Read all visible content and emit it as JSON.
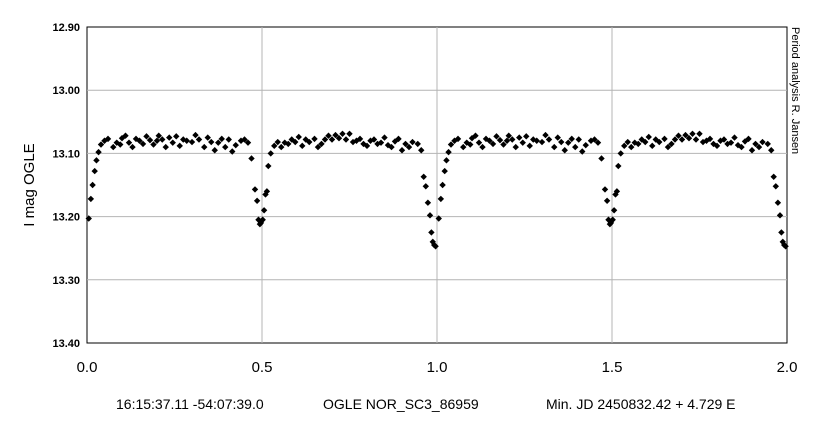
{
  "chart_data": {
    "type": "scatter",
    "title": "",
    "xlabel": "",
    "ylabel": "I mag OGLE",
    "xlim": [
      0.0,
      2.0
    ],
    "ylim": [
      12.9,
      13.4
    ],
    "y_inverted": true,
    "grid": true,
    "x_ticks": [
      "0.0",
      "0.5",
      "1.0",
      "1.5",
      "2.0"
    ],
    "y_ticks": [
      "12.90",
      "13.00",
      "13.10",
      "13.20",
      "13.30",
      "13.40"
    ],
    "marker": "diamond",
    "marker_color": "#000000",
    "credit": "Period analysis  R. Jansen",
    "points": [
      [
        0.005,
        13.203
      ],
      [
        0.011,
        13.172
      ],
      [
        0.016,
        13.15
      ],
      [
        0.022,
        13.128
      ],
      [
        0.027,
        13.111
      ],
      [
        0.033,
        13.098
      ],
      [
        0.04,
        13.086
      ],
      [
        0.05,
        13.08
      ],
      [
        0.06,
        13.077
      ],
      [
        0.075,
        13.09
      ],
      [
        0.085,
        13.083
      ],
      [
        0.095,
        13.086
      ],
      [
        0.1,
        13.076
      ],
      [
        0.11,
        13.072
      ],
      [
        0.12,
        13.083
      ],
      [
        0.13,
        13.09
      ],
      [
        0.14,
        13.077
      ],
      [
        0.15,
        13.08
      ],
      [
        0.16,
        13.085
      ],
      [
        0.17,
        13.073
      ],
      [
        0.18,
        13.079
      ],
      [
        0.19,
        13.086
      ],
      [
        0.2,
        13.08
      ],
      [
        0.205,
        13.072
      ],
      [
        0.215,
        13.078
      ],
      [
        0.225,
        13.09
      ],
      [
        0.235,
        13.075
      ],
      [
        0.245,
        13.083
      ],
      [
        0.255,
        13.073
      ],
      [
        0.265,
        13.088
      ],
      [
        0.275,
        13.078
      ],
      [
        0.285,
        13.08
      ],
      [
        0.3,
        13.082
      ],
      [
        0.31,
        13.071
      ],
      [
        0.32,
        13.078
      ],
      [
        0.335,
        13.09
      ],
      [
        0.345,
        13.075
      ],
      [
        0.355,
        13.082
      ],
      [
        0.365,
        13.095
      ],
      [
        0.375,
        13.083
      ],
      [
        0.385,
        13.077
      ],
      [
        0.395,
        13.09
      ],
      [
        0.405,
        13.078
      ],
      [
        0.415,
        13.097
      ],
      [
        0.425,
        13.087
      ],
      [
        0.44,
        13.08
      ],
      [
        0.45,
        13.078
      ],
      [
        0.46,
        13.083
      ],
      [
        0.47,
        13.108
      ],
      [
        0.48,
        13.157
      ],
      [
        0.486,
        13.175
      ],
      [
        0.49,
        13.205
      ],
      [
        0.494,
        13.212
      ],
      [
        0.497,
        13.21
      ],
      [
        0.502,
        13.205
      ],
      [
        0.506,
        13.19
      ],
      [
        0.51,
        13.165
      ],
      [
        0.514,
        13.16
      ],
      [
        0.518,
        13.12
      ],
      [
        0.525,
        13.1
      ],
      [
        0.535,
        13.088
      ],
      [
        0.545,
        13.082
      ],
      [
        0.555,
        13.09
      ],
      [
        0.565,
        13.083
      ],
      [
        0.575,
        13.085
      ],
      [
        0.585,
        13.078
      ],
      [
        0.595,
        13.082
      ],
      [
        0.605,
        13.074
      ],
      [
        0.615,
        13.088
      ],
      [
        0.625,
        13.078
      ],
      [
        0.635,
        13.082
      ],
      [
        0.65,
        13.077
      ],
      [
        0.66,
        13.09
      ],
      [
        0.67,
        13.085
      ],
      [
        0.68,
        13.078
      ],
      [
        0.69,
        13.072
      ],
      [
        0.7,
        13.078
      ],
      [
        0.71,
        13.071
      ],
      [
        0.72,
        13.076
      ],
      [
        0.73,
        13.069
      ],
      [
        0.74,
        13.078
      ],
      [
        0.75,
        13.069
      ],
      [
        0.76,
        13.082
      ],
      [
        0.77,
        13.08
      ],
      [
        0.78,
        13.077
      ],
      [
        0.79,
        13.085
      ],
      [
        0.8,
        13.088
      ],
      [
        0.81,
        13.08
      ],
      [
        0.82,
        13.078
      ],
      [
        0.83,
        13.085
      ],
      [
        0.84,
        13.083
      ],
      [
        0.85,
        13.075
      ],
      [
        0.86,
        13.087
      ],
      [
        0.87,
        13.09
      ],
      [
        0.88,
        13.081
      ],
      [
        0.89,
        13.077
      ],
      [
        0.9,
        13.095
      ],
      [
        0.91,
        13.085
      ],
      [
        0.92,
        13.09
      ],
      [
        0.93,
        13.082
      ],
      [
        0.945,
        13.085
      ],
      [
        0.955,
        13.095
      ],
      [
        0.962,
        13.137
      ],
      [
        0.968,
        13.152
      ],
      [
        0.974,
        13.178
      ],
      [
        0.98,
        13.198
      ],
      [
        0.984,
        13.225
      ],
      [
        0.988,
        13.24
      ],
      [
        0.992,
        13.245
      ],
      [
        0.996,
        13.247
      ],
      [
        1.005,
        13.203
      ],
      [
        1.011,
        13.172
      ],
      [
        1.016,
        13.15
      ],
      [
        1.022,
        13.128
      ],
      [
        1.027,
        13.111
      ],
      [
        1.033,
        13.098
      ],
      [
        1.04,
        13.086
      ],
      [
        1.05,
        13.08
      ],
      [
        1.06,
        13.077
      ],
      [
        1.075,
        13.09
      ],
      [
        1.085,
        13.083
      ],
      [
        1.095,
        13.086
      ],
      [
        1.1,
        13.076
      ],
      [
        1.11,
        13.072
      ],
      [
        1.12,
        13.083
      ],
      [
        1.13,
        13.09
      ],
      [
        1.14,
        13.077
      ],
      [
        1.15,
        13.08
      ],
      [
        1.16,
        13.085
      ],
      [
        1.17,
        13.073
      ],
      [
        1.18,
        13.079
      ],
      [
        1.19,
        13.086
      ],
      [
        1.2,
        13.08
      ],
      [
        1.205,
        13.072
      ],
      [
        1.215,
        13.078
      ],
      [
        1.225,
        13.09
      ],
      [
        1.235,
        13.075
      ],
      [
        1.245,
        13.083
      ],
      [
        1.255,
        13.073
      ],
      [
        1.265,
        13.088
      ],
      [
        1.275,
        13.078
      ],
      [
        1.285,
        13.08
      ],
      [
        1.3,
        13.082
      ],
      [
        1.31,
        13.071
      ],
      [
        1.32,
        13.078
      ],
      [
        1.335,
        13.09
      ],
      [
        1.345,
        13.075
      ],
      [
        1.355,
        13.082
      ],
      [
        1.365,
        13.095
      ],
      [
        1.375,
        13.083
      ],
      [
        1.385,
        13.077
      ],
      [
        1.395,
        13.09
      ],
      [
        1.405,
        13.078
      ],
      [
        1.415,
        13.097
      ],
      [
        1.425,
        13.087
      ],
      [
        1.44,
        13.08
      ],
      [
        1.45,
        13.078
      ],
      [
        1.46,
        13.083
      ],
      [
        1.47,
        13.108
      ],
      [
        1.48,
        13.157
      ],
      [
        1.486,
        13.175
      ],
      [
        1.49,
        13.205
      ],
      [
        1.494,
        13.212
      ],
      [
        1.497,
        13.21
      ],
      [
        1.502,
        13.205
      ],
      [
        1.506,
        13.19
      ],
      [
        1.51,
        13.165
      ],
      [
        1.514,
        13.16
      ],
      [
        1.518,
        13.12
      ],
      [
        1.525,
        13.1
      ],
      [
        1.535,
        13.088
      ],
      [
        1.545,
        13.082
      ],
      [
        1.555,
        13.09
      ],
      [
        1.565,
        13.083
      ],
      [
        1.575,
        13.085
      ],
      [
        1.585,
        13.078
      ],
      [
        1.595,
        13.082
      ],
      [
        1.605,
        13.074
      ],
      [
        1.615,
        13.088
      ],
      [
        1.625,
        13.078
      ],
      [
        1.635,
        13.082
      ],
      [
        1.65,
        13.077
      ],
      [
        1.66,
        13.09
      ],
      [
        1.67,
        13.085
      ],
      [
        1.68,
        13.078
      ],
      [
        1.69,
        13.072
      ],
      [
        1.7,
        13.078
      ],
      [
        1.71,
        13.071
      ],
      [
        1.72,
        13.076
      ],
      [
        1.73,
        13.069
      ],
      [
        1.74,
        13.078
      ],
      [
        1.75,
        13.069
      ],
      [
        1.76,
        13.082
      ],
      [
        1.77,
        13.08
      ],
      [
        1.78,
        13.077
      ],
      [
        1.79,
        13.085
      ],
      [
        1.8,
        13.088
      ],
      [
        1.81,
        13.08
      ],
      [
        1.82,
        13.078
      ],
      [
        1.83,
        13.085
      ],
      [
        1.84,
        13.083
      ],
      [
        1.85,
        13.075
      ],
      [
        1.86,
        13.087
      ],
      [
        1.87,
        13.09
      ],
      [
        1.88,
        13.081
      ],
      [
        1.89,
        13.077
      ],
      [
        1.9,
        13.095
      ],
      [
        1.91,
        13.085
      ],
      [
        1.92,
        13.09
      ],
      [
        1.93,
        13.082
      ],
      [
        1.945,
        13.085
      ],
      [
        1.955,
        13.095
      ],
      [
        1.962,
        13.137
      ],
      [
        1.968,
        13.152
      ],
      [
        1.974,
        13.178
      ],
      [
        1.98,
        13.198
      ],
      [
        1.984,
        13.225
      ],
      [
        1.988,
        13.24
      ],
      [
        1.992,
        13.245
      ],
      [
        1.996,
        13.247
      ]
    ]
  },
  "caption": {
    "coordinates": "16:15:37.11 -54:07:39.0",
    "star_id": "OGLE NOR_SC3_86959",
    "ephemeris": "Min. JD 2450832.42 + 4.729 E"
  }
}
